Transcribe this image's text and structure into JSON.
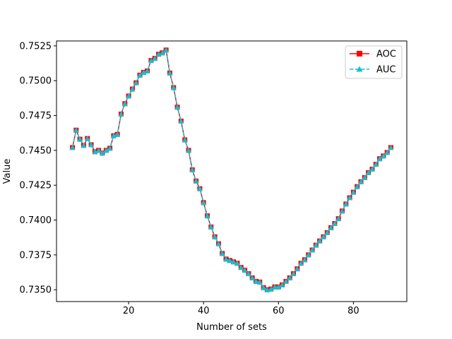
{
  "chart_data": {
    "type": "line",
    "title": "",
    "xlabel": "Number of sets",
    "ylabel": "Value",
    "xlim": [
      0.75,
      94.25
    ],
    "ylim": [
      0.73415,
      0.75285
    ],
    "xticks": [
      20,
      40,
      60,
      80
    ],
    "xtick_labels": [
      "20",
      "40",
      "60",
      "80"
    ],
    "yticks": [
      0.735,
      0.7375,
      0.74,
      0.7425,
      0.745,
      0.7475,
      0.75,
      0.7525
    ],
    "ytick_labels": [
      "0.7350",
      "0.7375",
      "0.7400",
      "0.7425",
      "0.7450",
      "0.7475",
      "0.7500",
      "0.7525"
    ],
    "grid": false,
    "legend_position": "top-right",
    "x": [
      5,
      6,
      7,
      8,
      9,
      10,
      11,
      12,
      13,
      14,
      15,
      16,
      17,
      18,
      19,
      20,
      21,
      22,
      23,
      24,
      25,
      26,
      27,
      28,
      29,
      30,
      31,
      32,
      33,
      34,
      35,
      36,
      37,
      38,
      39,
      40,
      41,
      42,
      43,
      44,
      45,
      46,
      47,
      48,
      49,
      50,
      51,
      52,
      53,
      54,
      55,
      56,
      57,
      58,
      59,
      60,
      61,
      62,
      63,
      64,
      65,
      66,
      67,
      68,
      69,
      70,
      71,
      72,
      73,
      74,
      75,
      76,
      77,
      78,
      79,
      80,
      81,
      82,
      83,
      84,
      85,
      86,
      87,
      88,
      89,
      90
    ],
    "series": [
      {
        "name": "AOC",
        "color": "#ff0000",
        "linestyle": "solid",
        "marker": "square",
        "values": [
          0.7452,
          0.74645,
          0.7458,
          0.74535,
          0.74585,
          0.7454,
          0.7449,
          0.745,
          0.7448,
          0.745,
          0.74515,
          0.74605,
          0.74615,
          0.7476,
          0.74835,
          0.7489,
          0.7494,
          0.74985,
          0.7504,
          0.7506,
          0.7507,
          0.75145,
          0.7516,
          0.7519,
          0.752,
          0.7522,
          0.75055,
          0.7495,
          0.7481,
          0.7471,
          0.74575,
          0.745,
          0.7436,
          0.7428,
          0.74225,
          0.74125,
          0.7403,
          0.7395,
          0.7388,
          0.7383,
          0.7376,
          0.7372,
          0.7371,
          0.737,
          0.7369,
          0.7366,
          0.7364,
          0.73615,
          0.73585,
          0.7356,
          0.73555,
          0.73515,
          0.735,
          0.73505,
          0.7352,
          0.7352,
          0.73535,
          0.7356,
          0.73585,
          0.73615,
          0.7365,
          0.7369,
          0.73715,
          0.7375,
          0.73785,
          0.7382,
          0.7385,
          0.7388,
          0.7391,
          0.73945,
          0.73975,
          0.7401,
          0.74065,
          0.74115,
          0.7416,
          0.742,
          0.7424,
          0.74275,
          0.74305,
          0.7434,
          0.74365,
          0.744,
          0.7444,
          0.7446,
          0.74485,
          0.7452
        ]
      },
      {
        "name": "AUC",
        "color": "#17becf",
        "linestyle": "dashed",
        "marker": "triangle",
        "values": [
          0.7452,
          0.74645,
          0.7458,
          0.74535,
          0.74585,
          0.7454,
          0.7449,
          0.745,
          0.7448,
          0.745,
          0.74515,
          0.74605,
          0.74615,
          0.7476,
          0.74835,
          0.7489,
          0.7494,
          0.74985,
          0.7504,
          0.7506,
          0.7507,
          0.75145,
          0.7516,
          0.7519,
          0.752,
          0.7522,
          0.75055,
          0.7495,
          0.7481,
          0.7471,
          0.74575,
          0.745,
          0.7436,
          0.7428,
          0.74225,
          0.74125,
          0.7403,
          0.7395,
          0.7388,
          0.7383,
          0.7376,
          0.7372,
          0.7371,
          0.737,
          0.7369,
          0.7366,
          0.7364,
          0.73615,
          0.73585,
          0.7356,
          0.73555,
          0.73515,
          0.735,
          0.73505,
          0.7352,
          0.7352,
          0.73535,
          0.7356,
          0.73585,
          0.73615,
          0.7365,
          0.7369,
          0.73715,
          0.7375,
          0.73785,
          0.7382,
          0.7385,
          0.7388,
          0.7391,
          0.73945,
          0.73975,
          0.7401,
          0.74065,
          0.74115,
          0.7416,
          0.742,
          0.7424,
          0.74275,
          0.74305,
          0.7434,
          0.74365,
          0.744,
          0.7444,
          0.7446,
          0.74485,
          0.7452
        ]
      }
    ]
  }
}
